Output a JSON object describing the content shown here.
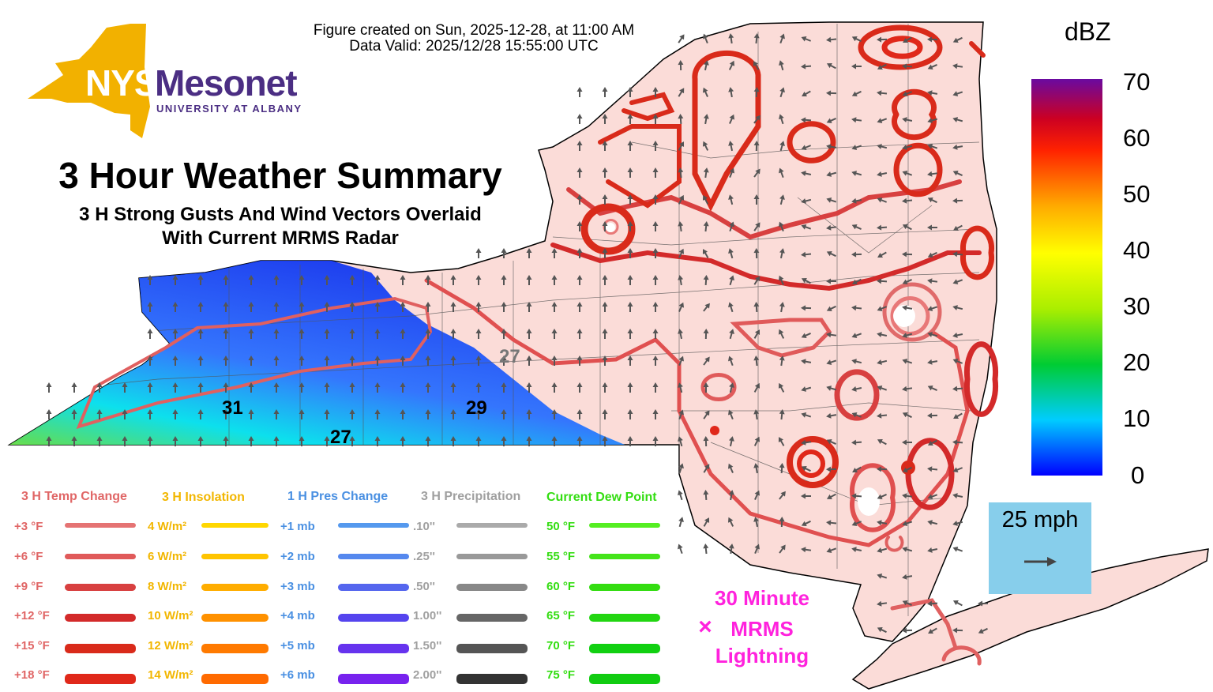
{
  "header": {
    "created": "Figure created on Sun, 2025-12-28, at 11:00 AM",
    "valid": "Data Valid: 2025/12/28 15:55:00 UTC"
  },
  "logo": {
    "nys": "NYS",
    "mesonet": "Mesonet",
    "university": "UNIVERSITY AT ALBANY"
  },
  "title": {
    "main": "3 Hour Weather Summary",
    "sub1": "3 H Strong Gusts And Wind Vectors Overlaid",
    "sub2": "With Current MRMS Radar"
  },
  "colorbar": {
    "unit": "dBZ",
    "labels": [
      "70",
      "60",
      "50",
      "40",
      "30",
      "20",
      "10",
      "0"
    ]
  },
  "wind_key": {
    "label": "25 mph"
  },
  "storm_labels": [
    "27",
    "31",
    "27",
    "29"
  ],
  "lightning": {
    "line1": "30 Minute",
    "line2": "MRMS",
    "line3": "Lightning",
    "marker": "×"
  },
  "legend": {
    "columns": [
      {
        "title": "3 H Temp Change",
        "color": "#e06666",
        "rows": [
          {
            "label": "+3 °F",
            "bar": "#e57373"
          },
          {
            "label": "+6 °F",
            "bar": "#e05a5a"
          },
          {
            "label": "+9 °F",
            "bar": "#d84040"
          },
          {
            "label": "+12 °F",
            "bar": "#d32a2a"
          },
          {
            "label": "+15 °F",
            "bar": "#d92a1a"
          },
          {
            "label": "+18 °F",
            "bar": "#e0281a"
          }
        ]
      },
      {
        "title": "3 H Insolation",
        "color": "#f2b600",
        "rows": [
          {
            "label": "4 W/m²",
            "bar": "#ffd700"
          },
          {
            "label": "6 W/m²",
            "bar": "#ffc400"
          },
          {
            "label": "8 W/m²",
            "bar": "#ffad00"
          },
          {
            "label": "10 W/m²",
            "bar": "#ff9100"
          },
          {
            "label": "12 W/m²",
            "bar": "#ff7a00"
          },
          {
            "label": "14 W/m²",
            "bar": "#ff6a00"
          }
        ]
      },
      {
        "title": "1 H Pres Change",
        "color": "#4a90e2",
        "rows": [
          {
            "label": "+1 mb",
            "bar": "#5599ee"
          },
          {
            "label": "+2 mb",
            "bar": "#5588ee"
          },
          {
            "label": "+3 mb",
            "bar": "#5566ee"
          },
          {
            "label": "+4 mb",
            "bar": "#5544ee"
          },
          {
            "label": "+5 mb",
            "bar": "#6633ee"
          },
          {
            "label": "+6 mb",
            "bar": "#7722ee"
          }
        ]
      },
      {
        "title": "3 H Precipitation",
        "color": "#a0a0a0",
        "rows": [
          {
            "label": ".10''",
            "bar": "#aaaaaa"
          },
          {
            "label": ".25''",
            "bar": "#999999"
          },
          {
            "label": ".50''",
            "bar": "#888888"
          },
          {
            "label": "1.00''",
            "bar": "#666666"
          },
          {
            "label": "1.50''",
            "bar": "#555555"
          },
          {
            "label": "2.00''",
            "bar": "#333333"
          }
        ]
      },
      {
        "title": "Current Dew Point",
        "color": "#33dd11",
        "rows": [
          {
            "label": "50 °F",
            "bar": "#55ee22"
          },
          {
            "label": "55 °F",
            "bar": "#44e41a"
          },
          {
            "label": "60 °F",
            "bar": "#33dd11"
          },
          {
            "label": "65 °F",
            "bar": "#22d611"
          },
          {
            "label": "70 °F",
            "bar": "#11d011"
          },
          {
            "label": "75 °F",
            "bar": "#11cc11"
          }
        ]
      }
    ]
  }
}
